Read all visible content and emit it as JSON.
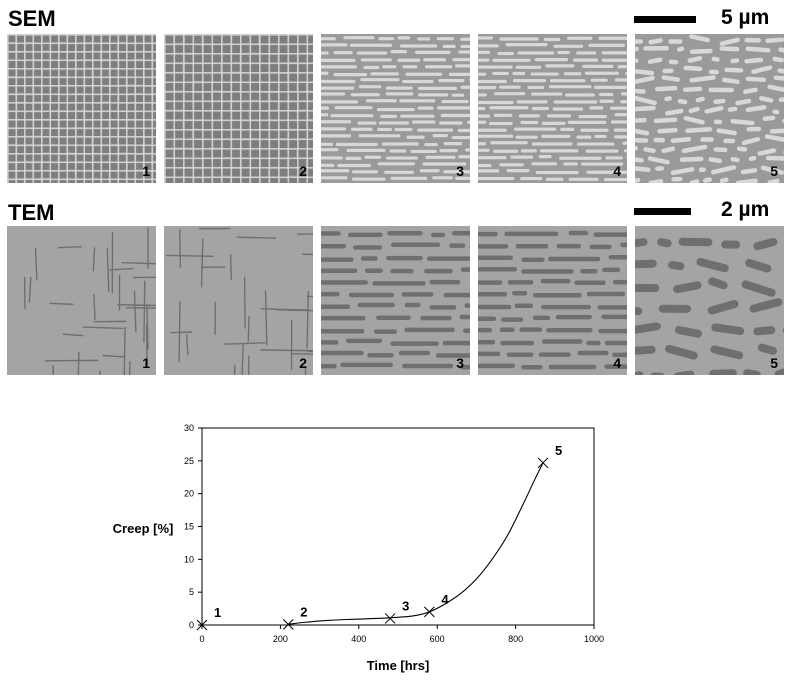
{
  "sem": {
    "title": "SEM",
    "scale_label": "5 µm",
    "panels": [
      {
        "label": "1",
        "morphology": "cuboidal"
      },
      {
        "label": "2",
        "morphology": "cuboidal"
      },
      {
        "label": "3",
        "morphology": "rafted"
      },
      {
        "label": "4",
        "morphology": "rafted"
      },
      {
        "label": "5",
        "morphology": "coarsened"
      }
    ],
    "colors": {
      "background": "#9a9a9a",
      "precipitate": "#d8d8d8"
    }
  },
  "tem": {
    "title": "TEM",
    "scale_label": "2 µm",
    "panels": [
      {
        "label": "1",
        "morphology": "cuboidal"
      },
      {
        "label": "2",
        "morphology": "cuboidal"
      },
      {
        "label": "3",
        "morphology": "rafted"
      },
      {
        "label": "4",
        "morphology": "rafted"
      },
      {
        "label": "5",
        "morphology": "coarsened"
      }
    ],
    "colors": {
      "background": "#a4a4a4",
      "channel": "#6f6f6f"
    }
  },
  "chart_data": {
    "type": "line",
    "title": "",
    "xlabel": "Time [hrs]",
    "ylabel": "Creep [%]",
    "xlim": [
      0,
      1000
    ],
    "ylim": [
      0,
      30
    ],
    "xticks": [
      0,
      200,
      400,
      600,
      800,
      1000
    ],
    "yticks": [
      0,
      5,
      10,
      15,
      20,
      25,
      30
    ],
    "grid": false,
    "curve": {
      "x": [
        220,
        260,
        320,
        400,
        480,
        540,
        580,
        620,
        660,
        700,
        740,
        780,
        820,
        850,
        870
      ],
      "y": [
        0.1,
        0.4,
        0.7,
        0.9,
        1.1,
        1.4,
        2.0,
        3.2,
        4.8,
        7.0,
        10.0,
        13.7,
        18.5,
        22.3,
        24.7
      ]
    },
    "markers": {
      "labels": [
        "1",
        "2",
        "3",
        "4",
        "5"
      ],
      "x": [
        0,
        220,
        480,
        580,
        870
      ],
      "y": [
        0,
        0.1,
        1.0,
        2.0,
        24.7
      ]
    }
  }
}
